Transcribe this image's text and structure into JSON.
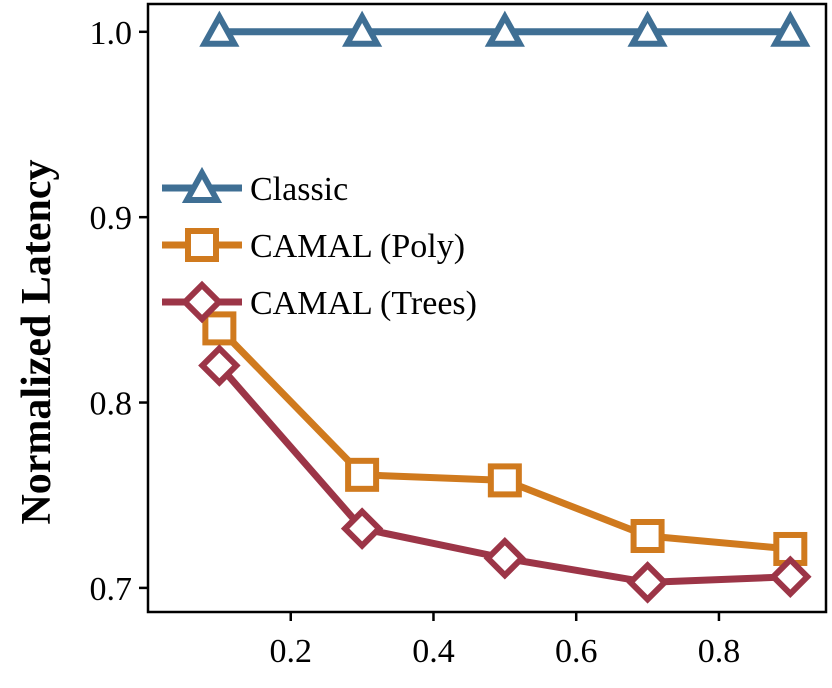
{
  "chart_data": {
    "type": "line",
    "title": "",
    "xlabel": "",
    "ylabel": "Normalized Latency",
    "xlim": [
      0.0,
      0.95
    ],
    "ylim": [
      0.687,
      1.015
    ],
    "x": [
      0.1,
      0.3,
      0.5,
      0.7,
      0.9
    ],
    "x_ticks": [
      0.2,
      0.4,
      0.6,
      0.8
    ],
    "x_tick_labels": [
      "0.2",
      "0.4",
      "0.6",
      "0.8"
    ],
    "y_ticks": [
      0.7,
      0.8,
      0.9,
      1.0
    ],
    "y_tick_labels": [
      "0.7",
      "0.8",
      "0.9",
      "1.0"
    ],
    "grid": false,
    "legend_position": "center-left",
    "series": [
      {
        "name": "Classic",
        "values": [
          1.0,
          1.0,
          1.0,
          1.0,
          1.0
        ],
        "color": "#3f6f94",
        "marker": "triangle"
      },
      {
        "name": "CAMAL (Poly)",
        "values": [
          0.84,
          0.761,
          0.758,
          0.728,
          0.721
        ],
        "color": "#d07a1e",
        "marker": "square"
      },
      {
        "name": "CAMAL (Trees)",
        "values": [
          0.82,
          0.732,
          0.716,
          0.703,
          0.706
        ],
        "color": "#9c3547",
        "marker": "diamond"
      }
    ]
  }
}
